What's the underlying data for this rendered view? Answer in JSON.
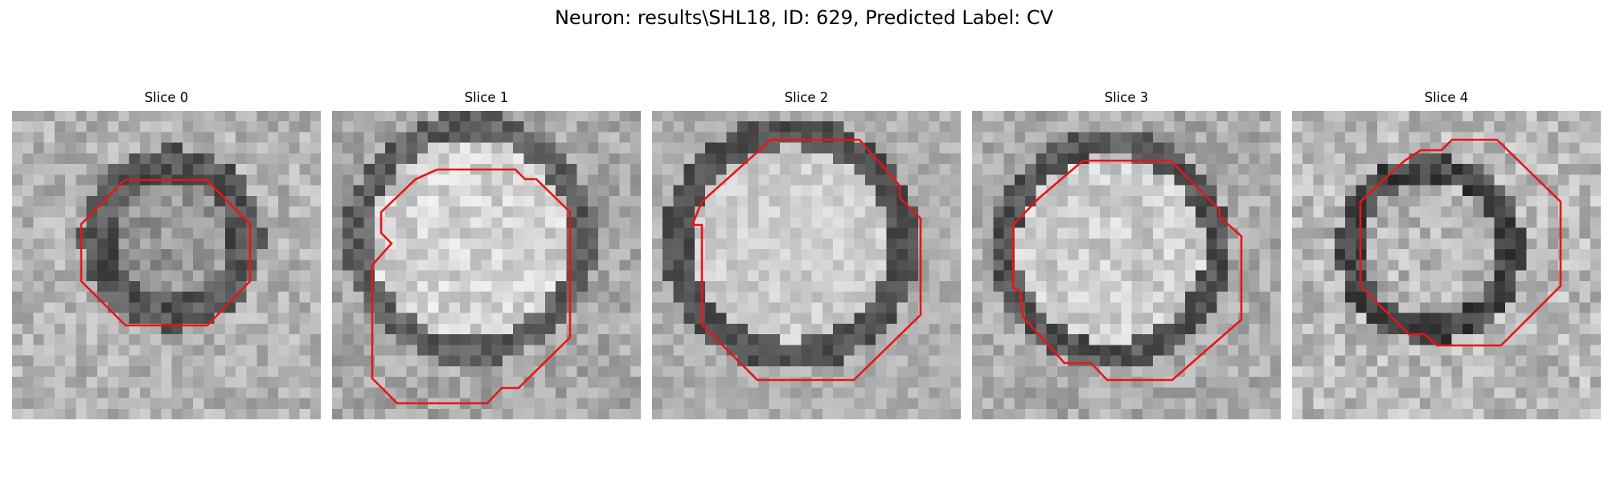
{
  "figure_title": "Neuron: results\\SHL18, ID: 629, Predicted Label: CV",
  "outline_color": "#e8141a",
  "slices": [
    {
      "title": "Slice 0"
    },
    {
      "title": "Slice 1"
    },
    {
      "title": "Slice 2"
    },
    {
      "title": "Slice 3"
    },
    {
      "title": "Slice 4"
    }
  ]
}
